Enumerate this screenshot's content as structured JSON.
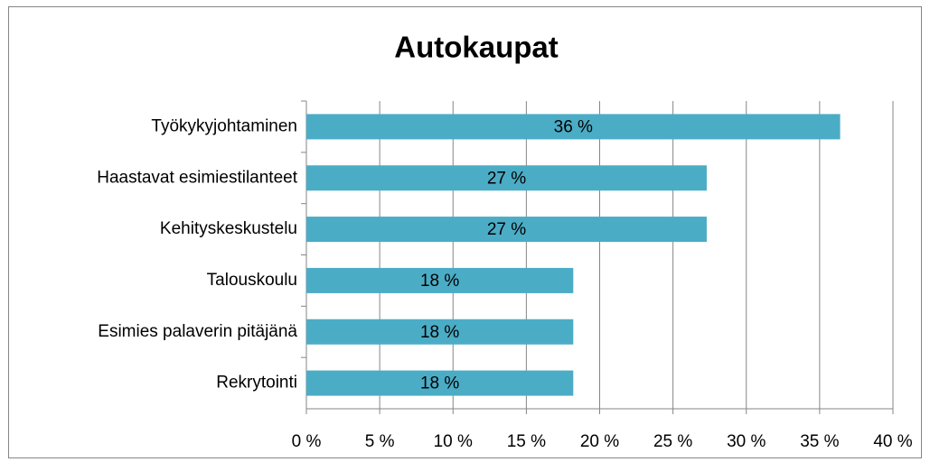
{
  "chart_data": {
    "type": "bar",
    "orientation": "horizontal",
    "title": "Autokaupat",
    "categories": [
      "Työkykyjohtaminen",
      "Haastavat esimiestilanteet",
      "Kehityskeskustelu",
      "Talouskoulu",
      "Esimies palaverin pitäjänä",
      "Rekrytointi"
    ],
    "values": [
      36.4,
      27.3,
      27.3,
      18.2,
      18.2,
      18.2
    ],
    "value_labels": [
      "36 %",
      "27 %",
      "27 %",
      "18 %",
      "18 %",
      "18 %"
    ],
    "color": "#4bacc6",
    "xlim": [
      0,
      40
    ],
    "xticks": [
      {
        "value": 0,
        "label": "0 %"
      },
      {
        "value": 5,
        "label": "5 %"
      },
      {
        "value": 10,
        "label": "10 %"
      },
      {
        "value": 15,
        "label": "15 %"
      },
      {
        "value": 20,
        "label": "20 %"
      },
      {
        "value": 25,
        "label": "25 %"
      },
      {
        "value": 30,
        "label": "30 %"
      },
      {
        "value": 35,
        "label": "35 %"
      },
      {
        "value": 40,
        "label": "40 %"
      }
    ],
    "grid": true
  }
}
